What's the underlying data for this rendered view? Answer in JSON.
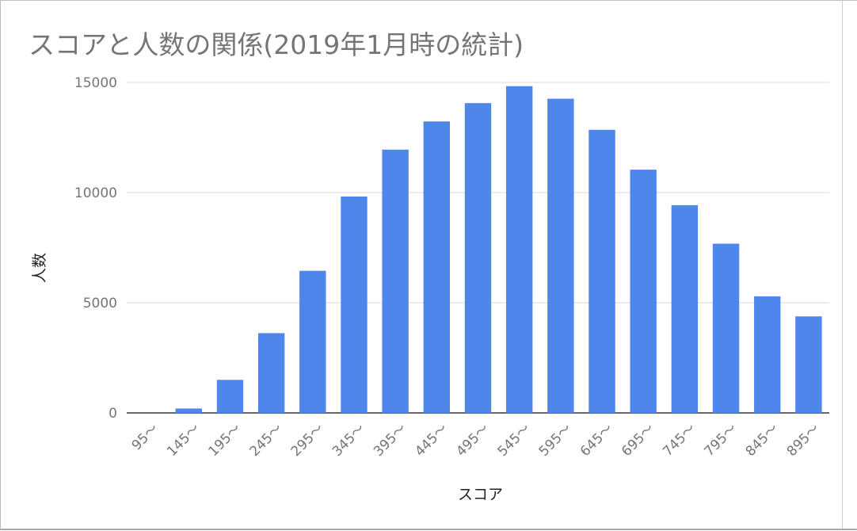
{
  "chart_data": {
    "type": "bar",
    "title": "スコアと人数の関係(2019年1月時の統計)",
    "xlabel": "スコア",
    "ylabel": "人数",
    "categories": [
      "95～",
      "145～",
      "195～",
      "245～",
      "295～",
      "345～",
      "395～",
      "445～",
      "495～",
      "545～",
      "595～",
      "645～",
      "695～",
      "745～",
      "795～",
      "845～",
      "895～"
    ],
    "values": [
      0,
      200,
      1500,
      3620,
      6450,
      9820,
      11950,
      13230,
      14060,
      14830,
      14260,
      12850,
      11040,
      9430,
      7680,
      5290,
      4380
    ],
    "ylim": [
      0,
      15000
    ],
    "yticks": [
      0,
      5000,
      10000,
      15000
    ],
    "grid": true,
    "legend": "none",
    "bar_color": "#4f86ec"
  }
}
